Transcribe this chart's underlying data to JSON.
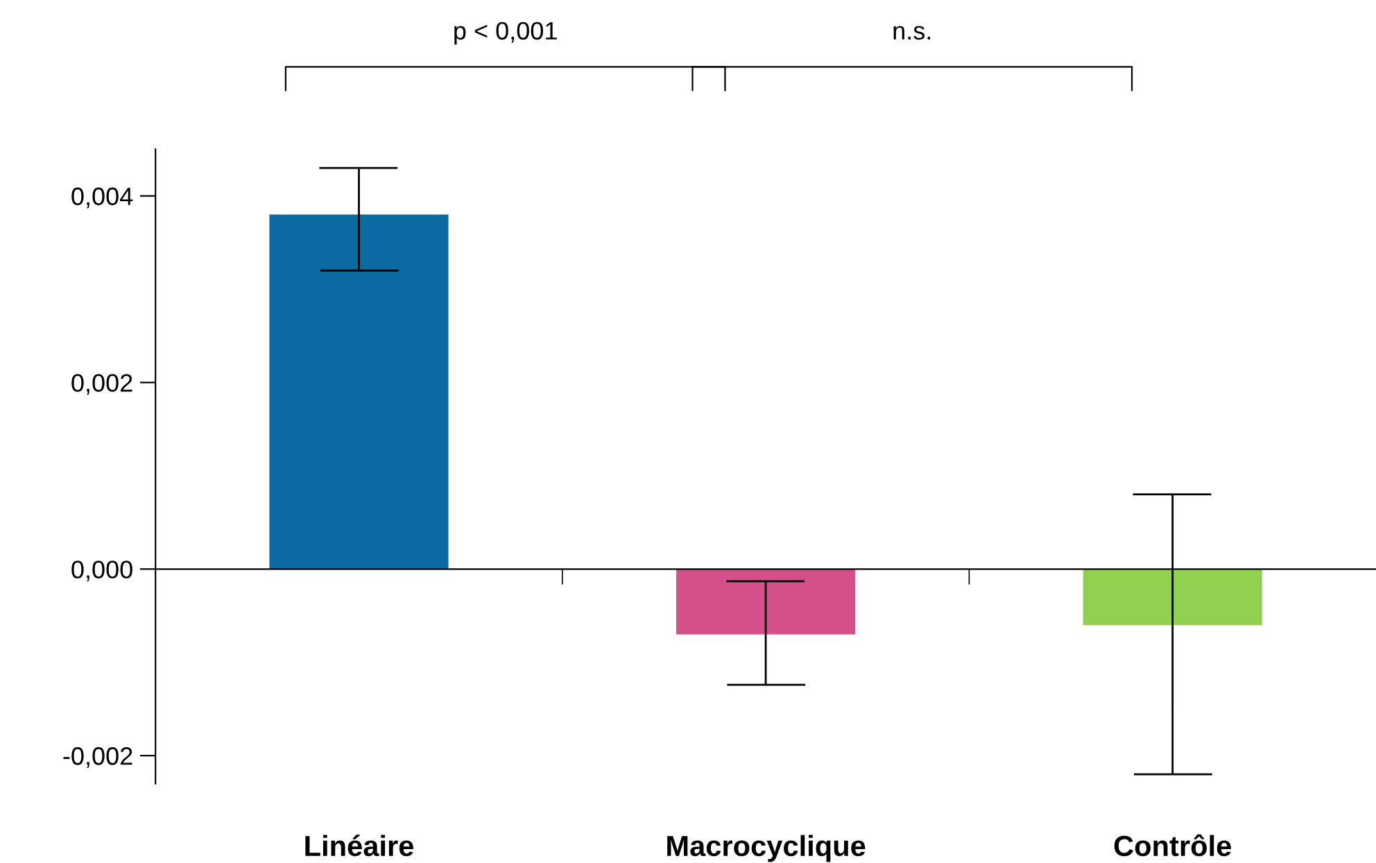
{
  "chart_data": {
    "type": "bar",
    "categories": [
      "Linéaire",
      "Macrocyclique",
      "Contrôle"
    ],
    "values": [
      0.0038,
      -0.0007,
      -0.0006
    ],
    "colors": [
      "#0a6aa1",
      "#d4508a",
      "#92d050"
    ],
    "errors": [
      [
        0.0032,
        0.0043
      ],
      [
        -0.00124,
        -0.00013
      ],
      [
        -0.0022,
        0.0008
      ]
    ],
    "ylim": [
      -0.0023,
      0.0045
    ],
    "yticks": [
      {
        "value": -0.002,
        "label": "-0,002"
      },
      {
        "value": 0,
        "label": "0,000"
      },
      {
        "value": 0.002,
        "label": "0,002"
      },
      {
        "value": 0.004,
        "label": "0,004"
      }
    ],
    "annotations": [
      "p < 0,001",
      "n.s."
    ],
    "legend": false
  }
}
